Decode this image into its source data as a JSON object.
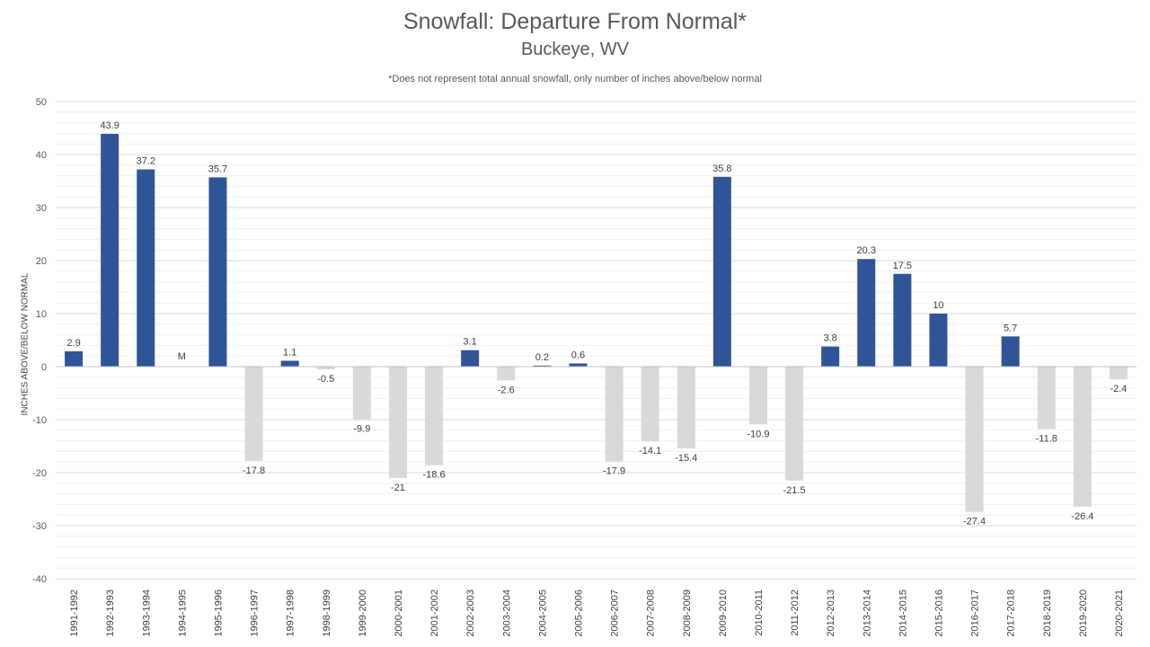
{
  "chart_data": {
    "type": "bar",
    "title": "Snowfall: Departure From Normal*",
    "subtitle": "Buckeye, WV",
    "note": "*Does not represent  total annual snowfall, only number of inches above/below normal",
    "ylabel": "INCHES ABOVE/BELOW NORMAL",
    "xlabel": "",
    "ylim": [
      -40,
      50
    ],
    "yticks": [
      50,
      40,
      30,
      20,
      10,
      0,
      -10,
      -20,
      -30,
      -40
    ],
    "grid": true,
    "colors": {
      "positive": "#2F5597",
      "negative": "#D9D9D9"
    },
    "categories": [
      "1991-1992",
      "1992-1993",
      "1993-1994",
      "1994-1995",
      "1995-1996",
      "1996-1997",
      "1997-1998",
      "1998-1999",
      "1999-2000",
      "2000-2001",
      "2001-2002",
      "2002-2003",
      "2003-2004",
      "2004-2005",
      "2005-2006",
      "2006-2007",
      "2007-2008",
      "2008-2009",
      "2009-2010",
      "2010-2011",
      "2011-2012",
      "2012-2013",
      "2013-2014",
      "2014-2015",
      "2015-2016",
      "2016-2017",
      "2017-2018",
      "2018-2019",
      "2019-2020",
      "2020-2021"
    ],
    "values": [
      2.9,
      43.9,
      37.2,
      null,
      35.7,
      -17.8,
      1.1,
      -0.5,
      -9.9,
      -21,
      -18.6,
      3.1,
      -2.6,
      0.2,
      0.6,
      -17.9,
      -14.1,
      -15.4,
      35.8,
      -10.9,
      -21.5,
      3.8,
      20.3,
      17.5,
      10,
      -27.4,
      5.7,
      -11.8,
      -26.4,
      -2.4
    ],
    "data_labels": [
      "2.9",
      "43.9",
      "37.2",
      "M",
      "35.7",
      "-17.8",
      "1.1",
      "-0.5",
      "-9.9",
      "-21",
      "-18.6",
      "3.1",
      "-2.6",
      "0.2",
      "0.6",
      "-17.9",
      "-14.1",
      "-15.4",
      "35.8",
      "-10.9",
      "-21.5",
      "3.8",
      "20.3",
      "17.5",
      "10",
      "-27.4",
      "5.7",
      "-11.8",
      "-26.4",
      "-2.4"
    ]
  }
}
